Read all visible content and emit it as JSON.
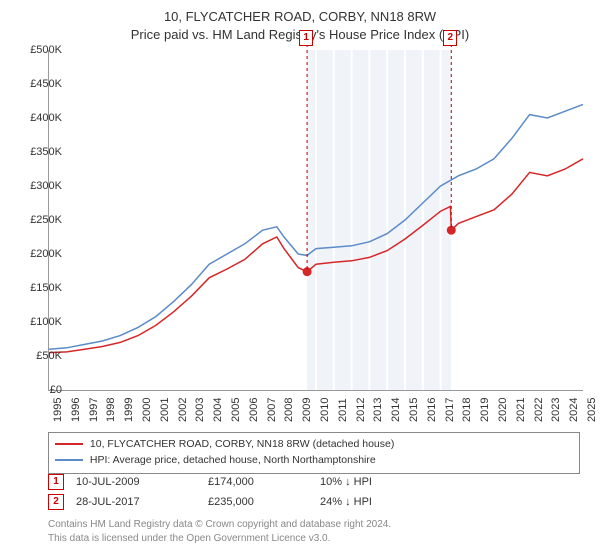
{
  "title_line1": "10, FLYCATCHER ROAD, CORBY, NN18 8RW",
  "title_line2": "Price paid vs. HM Land Registry's House Price Index (HPI)",
  "chart": {
    "type": "line",
    "x_start_year": 1995,
    "x_end_year": 2025,
    "x_tick_years": [
      1995,
      1996,
      1997,
      1998,
      1999,
      2000,
      2001,
      2002,
      2003,
      2004,
      2005,
      2006,
      2007,
      2008,
      2009,
      2010,
      2011,
      2012,
      2013,
      2014,
      2015,
      2016,
      2017,
      2018,
      2019,
      2020,
      2021,
      2022,
      2023,
      2024,
      2025
    ],
    "y_min": 0,
    "y_max": 500,
    "y_ticks": [
      0,
      50,
      100,
      150,
      200,
      250,
      300,
      350,
      400,
      450,
      500
    ],
    "y_tick_labels": [
      "£0",
      "£50K",
      "£100K",
      "£150K",
      "£200K",
      "£250K",
      "£300K",
      "£350K",
      "£400K",
      "£450K",
      "£500K"
    ],
    "shaded_x_start": 2009.5,
    "shaded_x_end": 2017.6,
    "background_color": "#ffffff",
    "shaded_color": "#f0f4f8",
    "series": [
      {
        "name": "hpi",
        "color": "#5b8bc9",
        "width": 1.5,
        "points": [
          [
            1995,
            60
          ],
          [
            1996,
            62
          ],
          [
            1997,
            67
          ],
          [
            1998,
            72
          ],
          [
            1999,
            80
          ],
          [
            2000,
            92
          ],
          [
            2001,
            108
          ],
          [
            2002,
            130
          ],
          [
            2003,
            155
          ],
          [
            2004,
            185
          ],
          [
            2005,
            200
          ],
          [
            2006,
            215
          ],
          [
            2007,
            235
          ],
          [
            2007.8,
            240
          ],
          [
            2008.2,
            225
          ],
          [
            2009,
            200
          ],
          [
            2009.5,
            198
          ],
          [
            2010,
            208
          ],
          [
            2011,
            210
          ],
          [
            2012,
            212
          ],
          [
            2013,
            218
          ],
          [
            2014,
            230
          ],
          [
            2015,
            250
          ],
          [
            2016,
            275
          ],
          [
            2017,
            300
          ],
          [
            2018,
            315
          ],
          [
            2019,
            325
          ],
          [
            2020,
            340
          ],
          [
            2021,
            370
          ],
          [
            2022,
            405
          ],
          [
            2023,
            400
          ],
          [
            2024,
            410
          ],
          [
            2025,
            420
          ]
        ]
      },
      {
        "name": "property",
        "color": "#d62728",
        "width": 1.5,
        "points": [
          [
            1995,
            55
          ],
          [
            1996,
            56
          ],
          [
            1997,
            60
          ],
          [
            1998,
            64
          ],
          [
            1999,
            70
          ],
          [
            2000,
            80
          ],
          [
            2001,
            95
          ],
          [
            2002,
            115
          ],
          [
            2003,
            138
          ],
          [
            2004,
            165
          ],
          [
            2005,
            178
          ],
          [
            2006,
            192
          ],
          [
            2007,
            215
          ],
          [
            2007.8,
            225
          ],
          [
            2008.2,
            208
          ],
          [
            2009,
            180
          ],
          [
            2009.5,
            174
          ],
          [
            2010,
            185
          ],
          [
            2011,
            188
          ],
          [
            2012,
            190
          ],
          [
            2013,
            195
          ],
          [
            2014,
            205
          ],
          [
            2015,
            222
          ],
          [
            2016,
            242
          ],
          [
            2017,
            263
          ],
          [
            2017.55,
            270
          ],
          [
            2017.6,
            235
          ],
          [
            2018,
            245
          ],
          [
            2019,
            255
          ],
          [
            2020,
            265
          ],
          [
            2021,
            288
          ],
          [
            2022,
            320
          ],
          [
            2023,
            315
          ],
          [
            2024,
            325
          ],
          [
            2025,
            340
          ]
        ]
      }
    ],
    "sale_markers": [
      {
        "num": "1",
        "x": 2009.5,
        "y": 174,
        "marker_top_y": 476
      },
      {
        "num": "2",
        "x": 2017.6,
        "y": 235,
        "marker_top_y": 476
      }
    ],
    "marker_color": "#d62728",
    "marker_border": "#c00000"
  },
  "legend": {
    "items": [
      {
        "color": "#d62728",
        "label": "10, FLYCATCHER ROAD, CORBY, NN18 8RW (detached house)"
      },
      {
        "color": "#5b8bc9",
        "label": "HPI: Average price, detached house, North Northamptonshire"
      }
    ]
  },
  "events": [
    {
      "num": "1",
      "date": "10-JUL-2009",
      "price": "£174,000",
      "delta": "10% ↓ HPI"
    },
    {
      "num": "2",
      "date": "28-JUL-2017",
      "price": "£235,000",
      "delta": "24% ↓ HPI"
    }
  ],
  "footer_line1": "Contains HM Land Registry data © Crown copyright and database right 2024.",
  "footer_line2": "This data is licensed under the Open Government Licence v3.0."
}
